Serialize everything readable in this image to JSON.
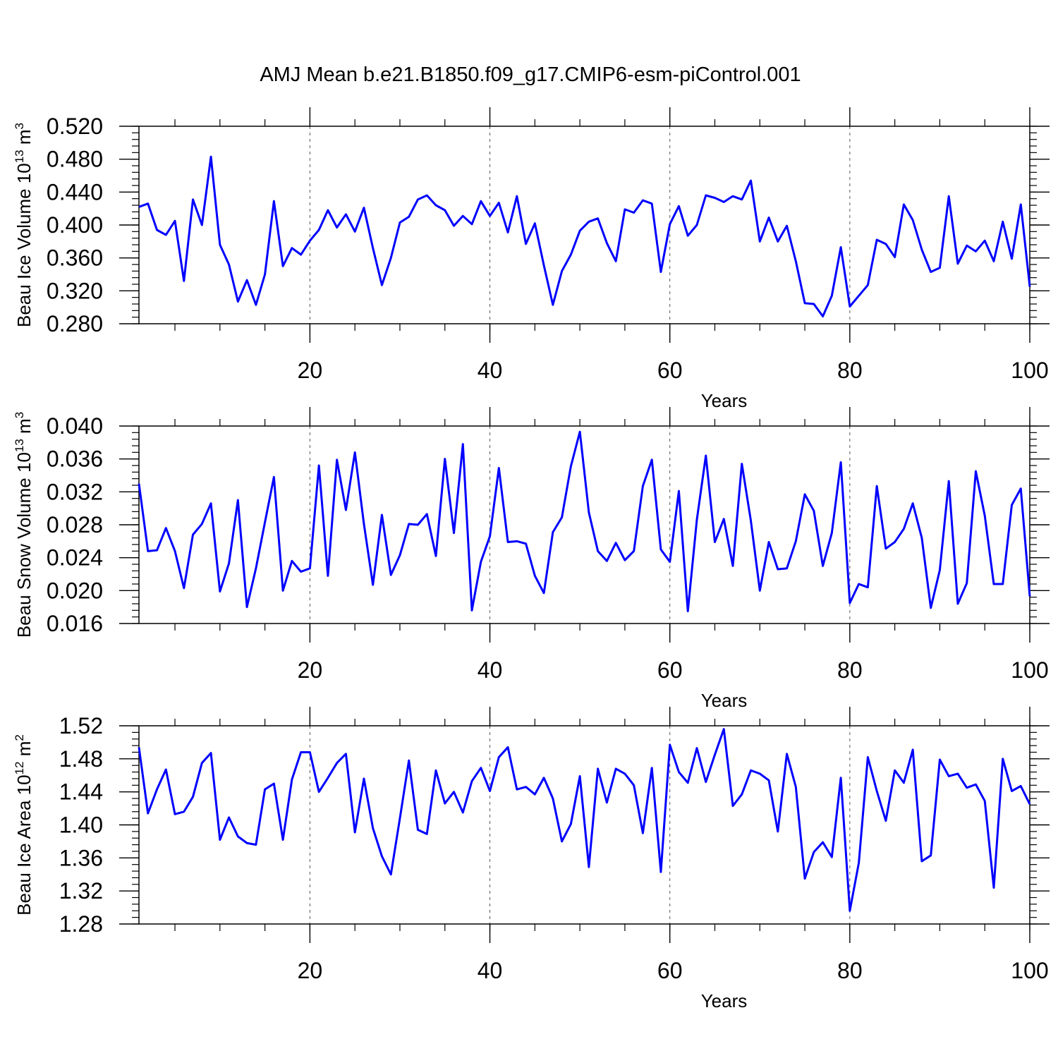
{
  "title": "AMJ Mean b.e21.B1850.f09_g17.CMIP6-esm-piControl.001",
  "line_color": "#0000ff",
  "chart_data": [
    {
      "type": "line",
      "ylabel_main": "Beau Ice Volume 10",
      "ylabel_exp": "13",
      "ylabel_unit": " m",
      "ylabel_unit_exp": "3",
      "xlabel": "Years",
      "xlim": [
        1,
        100
      ],
      "ylim": [
        0.28,
        0.52
      ],
      "xticks": [
        20,
        40,
        60,
        80,
        100
      ],
      "yticks": [
        "0.280",
        "0.320",
        "0.360",
        "0.400",
        "0.440",
        "0.480",
        "0.520"
      ],
      "dashed_vlines": [
        20,
        40,
        60,
        80
      ],
      "series": [
        {
          "x": [
            1,
            2,
            3,
            4,
            5,
            6,
            7,
            8,
            9,
            10,
            11,
            12,
            13,
            14,
            15,
            16,
            17,
            18,
            19,
            20,
            21,
            22,
            23,
            24,
            25,
            26,
            27,
            28,
            29,
            30,
            31,
            32,
            33,
            34,
            35,
            36,
            37,
            38,
            39,
            40,
            41,
            42,
            43,
            44,
            45,
            46,
            47,
            48,
            49,
            50,
            51,
            52,
            53,
            54,
            55,
            56,
            57,
            58,
            59,
            60,
            61,
            62,
            63,
            64,
            65,
            66,
            67,
            68,
            69,
            70,
            71,
            72,
            73,
            74,
            75,
            76,
            77,
            78,
            79,
            80,
            81,
            82,
            83,
            84,
            85,
            86,
            87,
            88,
            89,
            90,
            91,
            92,
            93,
            94,
            95,
            96,
            97,
            98,
            99,
            100
          ],
          "values": [
            0.422,
            0.426,
            0.394,
            0.388,
            0.405,
            0.332,
            0.431,
            0.4,
            0.483,
            0.376,
            0.352,
            0.307,
            0.333,
            0.303,
            0.34,
            0.429,
            0.35,
            0.372,
            0.364,
            0.381,
            0.394,
            0.418,
            0.397,
            0.413,
            0.392,
            0.421,
            0.372,
            0.327,
            0.36,
            0.403,
            0.41,
            0.431,
            0.436,
            0.424,
            0.418,
            0.399,
            0.411,
            0.401,
            0.429,
            0.411,
            0.427,
            0.391,
            0.435,
            0.377,
            0.402,
            0.351,
            0.303,
            0.344,
            0.364,
            0.393,
            0.404,
            0.408,
            0.378,
            0.356,
            0.419,
            0.415,
            0.43,
            0.426,
            0.343,
            0.401,
            0.423,
            0.387,
            0.4,
            0.436,
            0.433,
            0.428,
            0.435,
            0.431,
            0.454,
            0.38,
            0.409,
            0.38,
            0.399,
            0.356,
            0.305,
            0.304,
            0.289,
            0.314,
            0.373,
            0.301,
            0.314,
            0.327,
            0.382,
            0.377,
            0.361,
            0.425,
            0.406,
            0.37,
            0.343,
            0.348,
            0.435,
            0.353,
            0.375,
            0.368,
            0.381,
            0.356,
            0.404,
            0.359,
            0.425,
            0.325
          ]
        }
      ]
    },
    {
      "type": "line",
      "ylabel_main": "Beau Snow Volume 10",
      "ylabel_exp": "13",
      "ylabel_unit": " m",
      "ylabel_unit_exp": "3",
      "xlabel": "Years",
      "xlim": [
        1,
        100
      ],
      "ylim": [
        0.016,
        0.04
      ],
      "xticks": [
        20,
        40,
        60,
        80,
        100
      ],
      "yticks": [
        "0.016",
        "0.020",
        "0.024",
        "0.028",
        "0.032",
        "0.036",
        "0.040"
      ],
      "dashed_vlines": [
        20,
        40,
        60,
        80
      ],
      "series": [
        {
          "x": [
            1,
            2,
            3,
            4,
            5,
            6,
            7,
            8,
            9,
            10,
            11,
            12,
            13,
            14,
            15,
            16,
            17,
            18,
            19,
            20,
            21,
            22,
            23,
            24,
            25,
            26,
            27,
            28,
            29,
            30,
            31,
            32,
            33,
            34,
            35,
            36,
            37,
            38,
            39,
            40,
            41,
            42,
            43,
            44,
            45,
            46,
            47,
            48,
            49,
            50,
            51,
            52,
            53,
            54,
            55,
            56,
            57,
            58,
            59,
            60,
            61,
            62,
            63,
            64,
            65,
            66,
            67,
            68,
            69,
            70,
            71,
            72,
            73,
            74,
            75,
            76,
            77,
            78,
            79,
            80,
            81,
            82,
            83,
            84,
            85,
            86,
            87,
            88,
            89,
            90,
            91,
            92,
            93,
            94,
            95,
            96,
            97,
            98,
            99,
            100
          ],
          "values": [
            0.033,
            0.0248,
            0.0249,
            0.0276,
            0.0248,
            0.0203,
            0.0268,
            0.0281,
            0.0306,
            0.0199,
            0.0233,
            0.031,
            0.018,
            0.0227,
            0.0283,
            0.0338,
            0.02,
            0.0236,
            0.0223,
            0.0227,
            0.0352,
            0.0218,
            0.0359,
            0.0298,
            0.0368,
            0.0281,
            0.0207,
            0.0292,
            0.0219,
            0.0243,
            0.0281,
            0.028,
            0.0293,
            0.0242,
            0.036,
            0.027,
            0.0378,
            0.0176,
            0.0235,
            0.0266,
            0.0349,
            0.0259,
            0.026,
            0.0257,
            0.0218,
            0.0197,
            0.0271,
            0.0289,
            0.0351,
            0.0393,
            0.0295,
            0.0248,
            0.0236,
            0.0258,
            0.0237,
            0.0248,
            0.0327,
            0.0359,
            0.025,
            0.0235,
            0.0321,
            0.0175,
            0.0286,
            0.0364,
            0.0259,
            0.0287,
            0.023,
            0.0354,
            0.0285,
            0.02,
            0.0259,
            0.0226,
            0.0227,
            0.026,
            0.0317,
            0.0297,
            0.023,
            0.027,
            0.0356,
            0.0185,
            0.0208,
            0.0204,
            0.0327,
            0.0251,
            0.0259,
            0.0275,
            0.0306,
            0.0264,
            0.0179,
            0.0225,
            0.0333,
            0.0184,
            0.0209,
            0.0345,
            0.0291,
            0.0208,
            0.0208,
            0.0304,
            0.0324,
            0.0193
          ]
        }
      ]
    },
    {
      "type": "line",
      "ylabel_main": "Beau Ice Area 10",
      "ylabel_exp": "12",
      "ylabel_unit": " m",
      "ylabel_unit_exp": "2",
      "xlabel": "Years",
      "xlim": [
        1,
        100
      ],
      "ylim": [
        1.28,
        1.52
      ],
      "xticks": [
        20,
        40,
        60,
        80,
        100
      ],
      "yticks": [
        "1.28",
        "1.32",
        "1.36",
        "1.40",
        "1.44",
        "1.48",
        "1.52"
      ],
      "dashed_vlines": [
        20,
        40,
        60,
        80
      ],
      "series": [
        {
          "x": [
            1,
            2,
            3,
            4,
            5,
            6,
            7,
            8,
            9,
            10,
            11,
            12,
            13,
            14,
            15,
            16,
            17,
            18,
            19,
            20,
            21,
            22,
            23,
            24,
            25,
            26,
            27,
            28,
            29,
            30,
            31,
            32,
            33,
            34,
            35,
            36,
            37,
            38,
            39,
            40,
            41,
            42,
            43,
            44,
            45,
            46,
            47,
            48,
            49,
            50,
            51,
            52,
            53,
            54,
            55,
            56,
            57,
            58,
            59,
            60,
            61,
            62,
            63,
            64,
            65,
            66,
            67,
            68,
            69,
            70,
            71,
            72,
            73,
            74,
            75,
            76,
            77,
            78,
            79,
            80,
            81,
            82,
            83,
            84,
            85,
            86,
            87,
            88,
            89,
            90,
            91,
            92,
            93,
            94,
            95,
            96,
            97,
            98,
            99,
            100
          ],
          "values": [
            1.494,
            1.414,
            1.443,
            1.467,
            1.413,
            1.416,
            1.434,
            1.475,
            1.487,
            1.382,
            1.409,
            1.386,
            1.378,
            1.376,
            1.443,
            1.45,
            1.382,
            1.455,
            1.488,
            1.488,
            1.44,
            1.457,
            1.475,
            1.486,
            1.391,
            1.456,
            1.396,
            1.362,
            1.34,
            1.408,
            1.478,
            1.394,
            1.389,
            1.466,
            1.426,
            1.44,
            1.415,
            1.453,
            1.469,
            1.441,
            1.482,
            1.494,
            1.443,
            1.446,
            1.437,
            1.457,
            1.432,
            1.38,
            1.401,
            1.459,
            1.349,
            1.468,
            1.427,
            1.468,
            1.462,
            1.448,
            1.39,
            1.469,
            1.343,
            1.497,
            1.464,
            1.451,
            1.493,
            1.452,
            1.485,
            1.516,
            1.423,
            1.437,
            1.466,
            1.462,
            1.454,
            1.392,
            1.486,
            1.446,
            1.335,
            1.367,
            1.379,
            1.361,
            1.457,
            1.296,
            1.354,
            1.482,
            1.441,
            1.405,
            1.466,
            1.451,
            1.491,
            1.356,
            1.363,
            1.479,
            1.459,
            1.462,
            1.445,
            1.449,
            1.429,
            1.324,
            1.48,
            1.441,
            1.447,
            1.425
          ]
        }
      ]
    }
  ]
}
